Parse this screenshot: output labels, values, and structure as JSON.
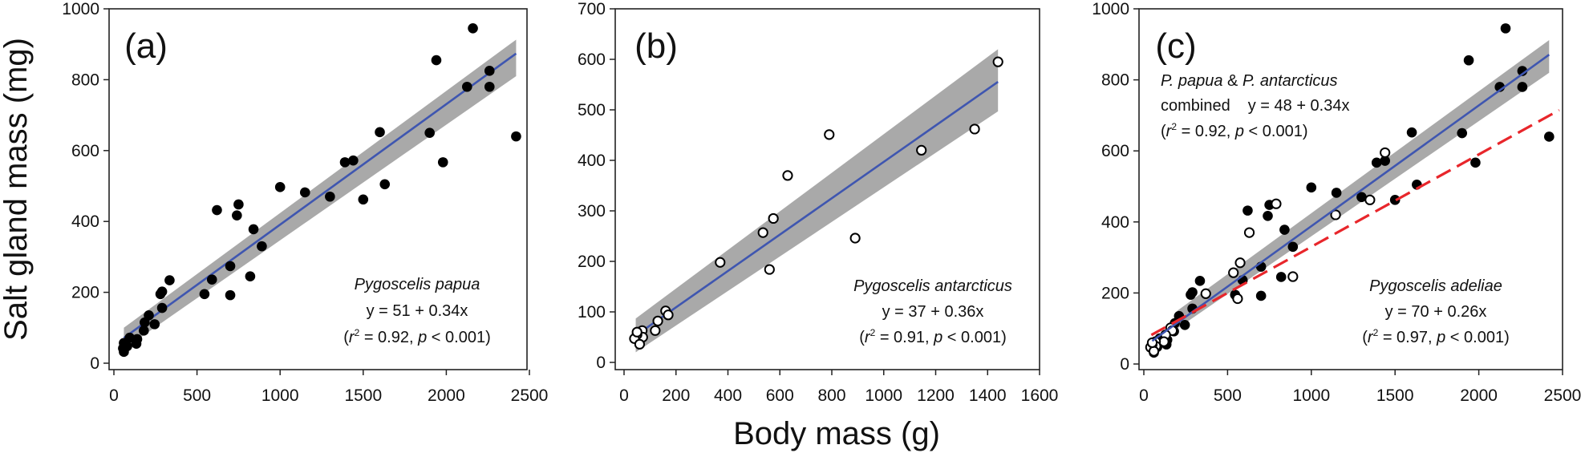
{
  "chart_data": [
    {
      "id": "a",
      "type": "scatter",
      "panel_label": "(a)",
      "xlim": [
        0,
        2500
      ],
      "ylim": [
        0,
        1000
      ],
      "xticks": [
        0,
        500,
        1000,
        1500,
        2000,
        2500
      ],
      "yticks": [
        0,
        200,
        400,
        600,
        800,
        1000
      ],
      "annotation": {
        "species": "Pygoscelis papua",
        "equation": "y = 51 + 0.34x",
        "stats_prefix": "(",
        "r": "r",
        "sup": "2",
        "r_value": "  = 0.92,",
        "p": "p",
        "p_value": "< 0.001)"
      },
      "series": [
        {
          "name": "Pygoscelis papua",
          "marker": "filled",
          "points": [
            [
              2160,
              945
            ],
            [
              1940,
              855
            ],
            [
              2125,
              780
            ],
            [
              2260,
              825
            ],
            [
              2260,
              780
            ],
            [
              2420,
              640
            ],
            [
              1900,
              650
            ],
            [
              1980,
              567
            ],
            [
              1600,
              652
            ],
            [
              1630,
              505
            ],
            [
              1500,
              462
            ],
            [
              1390,
              567
            ],
            [
              1440,
              572
            ],
            [
              1300,
              470
            ],
            [
              1150,
              482
            ],
            [
              1000,
              497
            ],
            [
              890,
              330
            ],
            [
              840,
              378
            ],
            [
              820,
              245
            ],
            [
              750,
              448
            ],
            [
              740,
              417
            ],
            [
              620,
              432
            ],
            [
              700,
              274
            ],
            [
              700,
              192
            ],
            [
              590,
              236
            ],
            [
              545,
              195
            ],
            [
              335,
              234
            ],
            [
              290,
              202
            ],
            [
              280,
              195
            ],
            [
              290,
              156
            ],
            [
              210,
              135
            ],
            [
              245,
              110
            ],
            [
              185,
              115
            ],
            [
              180,
              92
            ],
            [
              140,
              68
            ],
            [
              135,
              55
            ],
            [
              95,
              72
            ],
            [
              80,
              48
            ],
            [
              60,
              57
            ],
            [
              60,
              32
            ],
            [
              55,
              42
            ]
          ]
        }
      ],
      "fits": [
        {
          "name": "P. papua fit",
          "intercept": 51,
          "slope": 0.34,
          "x_range": [
            60,
            2420
          ],
          "color": "#3f56b0",
          "style": "solid",
          "ci_band": {
            "x_range": [
              60,
              2420
            ],
            "lower": [
              40,
              810
            ],
            "upper": [
              100,
              913
            ]
          }
        }
      ]
    },
    {
      "id": "b",
      "type": "scatter",
      "panel_label": "(b)",
      "xlim": [
        0,
        1600
      ],
      "ylim": [
        0,
        700
      ],
      "xticks": [
        0,
        200,
        400,
        600,
        800,
        1000,
        1200,
        1400,
        1600
      ],
      "yticks": [
        0,
        100,
        200,
        300,
        400,
        500,
        600,
        700
      ],
      "annotation": {
        "species": "Pygoscelis antarcticus",
        "equation": "y = 37 + 0.36x",
        "stats_prefix": "(",
        "r": "r",
        "sup": "2",
        "r_value": " = 0.91,",
        "p": "p",
        "p_value": "< 0.001)"
      },
      "series": [
        {
          "name": "Pygoscelis antarcticus",
          "marker": "open",
          "points": [
            [
              1440,
              595
            ],
            [
              1350,
              462
            ],
            [
              1145,
              420
            ],
            [
              790,
              451
            ],
            [
              890,
              246
            ],
            [
              630,
              370
            ],
            [
              575,
              285
            ],
            [
              535,
              257
            ],
            [
              560,
              184
            ],
            [
              370,
              198
            ],
            [
              160,
              102
            ],
            [
              170,
              94
            ],
            [
              130,
              82
            ],
            [
              120,
              63
            ],
            [
              70,
              63
            ],
            [
              72,
              50
            ],
            [
              50,
              55
            ],
            [
              40,
              47
            ],
            [
              60,
              36
            ],
            [
              50,
              60
            ]
          ]
        }
      ],
      "fits": [
        {
          "name": "P. antarcticus fit",
          "intercept": 37,
          "slope": 0.36,
          "x_range": [
            45,
            1440
          ],
          "color": "#3f56b0",
          "style": "solid",
          "ci_band": {
            "x_range": [
              45,
              1440
            ],
            "lower": [
              20,
              497
            ],
            "upper": [
              87,
              620
            ]
          }
        }
      ]
    },
    {
      "id": "c",
      "type": "scatter",
      "panel_label": "(c)",
      "xlim": [
        0,
        2500
      ],
      "ylim": [
        0,
        1000
      ],
      "xticks": [
        0,
        500,
        1000,
        1500,
        2000,
        2500
      ],
      "yticks": [
        0,
        200,
        400,
        600,
        800,
        1000
      ],
      "annotation_combined": {
        "line1_species": "P. papua",
        "line1_amp": "&",
        "line1_species2": "P. antarcticus",
        "line2_word": "combined",
        "line2_equation": "y = 48 + 0.34x",
        "stats_prefix": "(",
        "r": "r",
        "sup": "2",
        "r_value": "= 0.92,",
        "p": "p",
        "p_value": "< 0.001)"
      },
      "annotation_adeliae": {
        "species": "Pygoscelis adeliae",
        "equation": "y = 70 + 0.26x",
        "stats_prefix": "(",
        "r": "r",
        "sup": "2",
        "r_value": "= 0.97,",
        "p": "p",
        "p_value": "< 0.001)"
      },
      "series": [
        {
          "name": "Pygoscelis papua",
          "marker": "filled",
          "same_as": "a"
        },
        {
          "name": "Pygoscelis antarcticus",
          "marker": "open",
          "same_as": "b"
        }
      ],
      "fits": [
        {
          "name": "P. papua & P. antarcticus combined fit",
          "intercept": 48,
          "slope": 0.34,
          "x_range": [
            50,
            2420
          ],
          "color": "#3f56b0",
          "style": "solid",
          "ci_band": {
            "x_range": [
              200,
              2420
            ],
            "lower": [
              100,
              820
            ],
            "upper": [
              150,
              912
            ]
          }
        },
        {
          "name": "Pygoscelis adeliae fit",
          "intercept": 70,
          "slope": 0.26,
          "x_range": [
            45,
            2480
          ],
          "color": "#e8262b",
          "style": "dashed"
        }
      ]
    }
  ],
  "shared": {
    "xlabel": "Body mass (g)",
    "ylabel": "Salt gland mass (mg)",
    "colors": {
      "band": "#a9a9a9",
      "fit": "#3f56b0",
      "adeliae": "#e8262b",
      "marker": "#000000"
    }
  }
}
